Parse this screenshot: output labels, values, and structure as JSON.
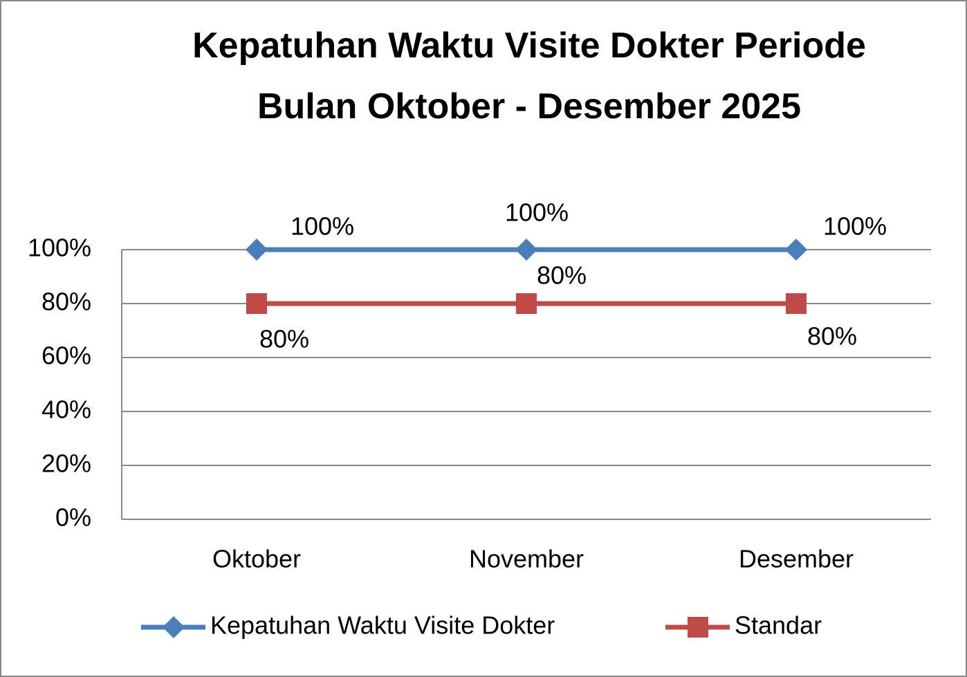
{
  "chart_data": {
    "type": "line",
    "title": "Kepatuhan Waktu Visite Dokter Periode Bulan Oktober - Desember 2025",
    "categories": [
      "Oktober",
      "November",
      "Desember"
    ],
    "series": [
      {
        "name": "Kepatuhan Waktu Visite Dokter",
        "color": "#4a7ebb",
        "marker": "diamond",
        "values": [
          100,
          100,
          100
        ],
        "value_labels": [
          "100%",
          "100%",
          "100%"
        ]
      },
      {
        "name": "Standar",
        "color": "#be4b48",
        "marker": "square",
        "values": [
          80,
          80,
          80
        ],
        "value_labels": [
          "80%",
          "80%",
          "80%"
        ]
      }
    ],
    "ylim": [
      0,
      100
    ],
    "yticks": [
      {
        "value": 0,
        "label": "0%"
      },
      {
        "value": 20,
        "label": "20%"
      },
      {
        "value": 40,
        "label": "40%"
      },
      {
        "value": 60,
        "label": "60%"
      },
      {
        "value": 80,
        "label": "80%"
      },
      {
        "value": 100,
        "label": "100%"
      }
    ],
    "grid": true,
    "legend": "bottom"
  }
}
